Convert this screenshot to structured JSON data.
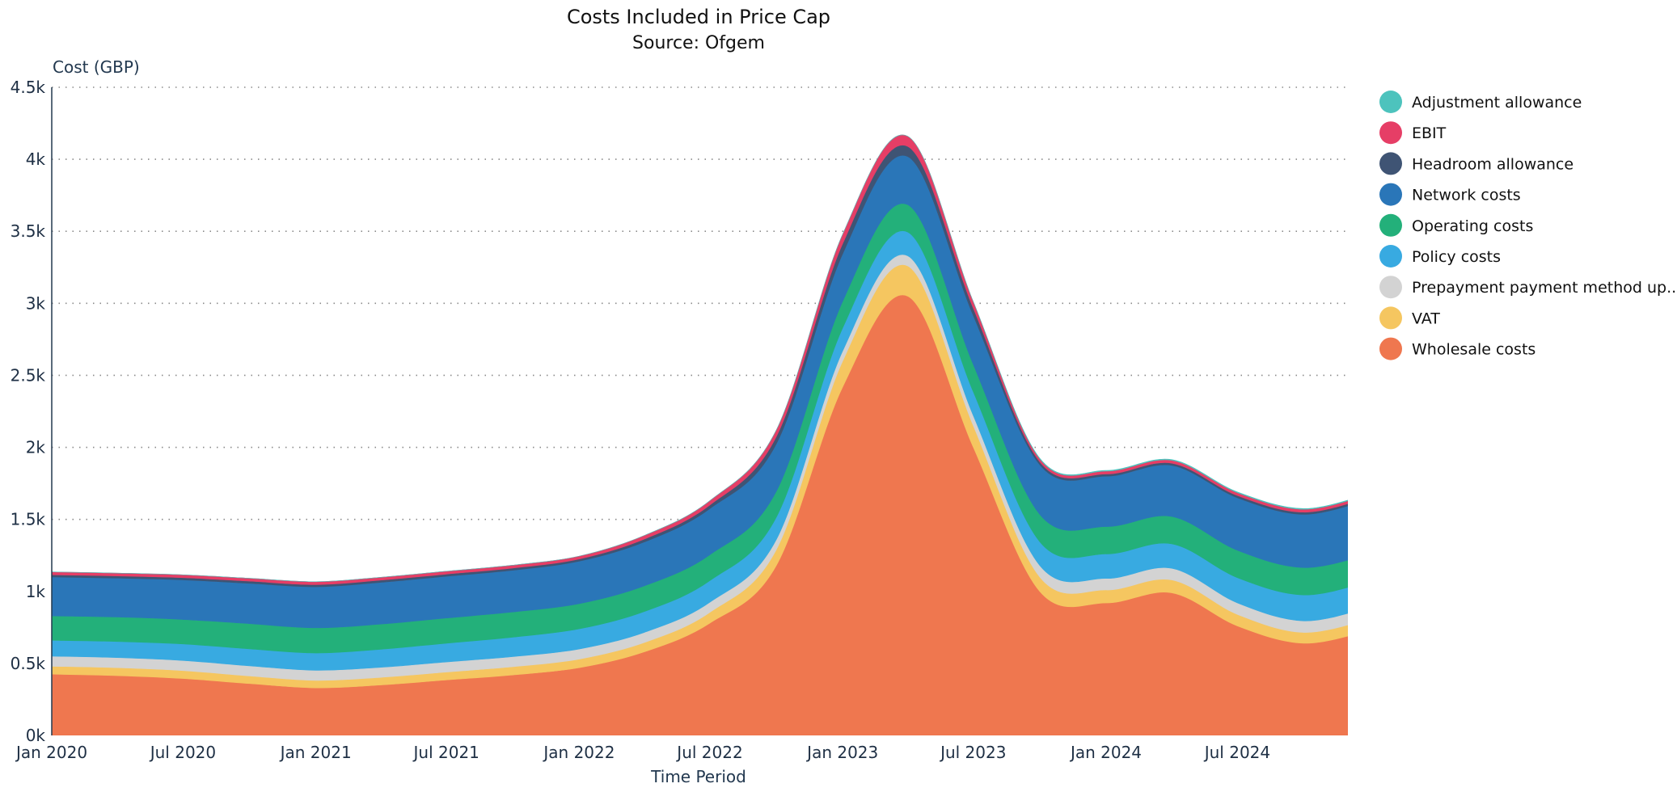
{
  "chart_data": {
    "type": "area",
    "stacked": true,
    "smooth": true,
    "title": "Costs Included in Price Cap",
    "subtitle": "Source: Ofgem",
    "xlabel": "Time Period",
    "ylabel": "Cost (GBP)",
    "x": [
      "2020-01-01",
      "2020-04-01",
      "2020-07-01",
      "2020-10-01",
      "2021-01-01",
      "2021-04-01",
      "2021-07-01",
      "2021-10-01",
      "2022-01-01",
      "2022-04-01",
      "2022-07-01",
      "2022-10-01",
      "2023-01-01",
      "2023-04-01",
      "2023-07-01",
      "2023-10-01",
      "2024-01-01",
      "2024-04-01",
      "2024-07-01",
      "2024-10-01",
      "2025-01-01"
    ],
    "xticks": [
      {
        "date": "2020-01-01",
        "label": "Jan 2020"
      },
      {
        "date": "2020-07-01",
        "label": "Jul 2020"
      },
      {
        "date": "2021-01-01",
        "label": "Jan 2021"
      },
      {
        "date": "2021-07-01",
        "label": "Jul 2021"
      },
      {
        "date": "2022-01-01",
        "label": "Jan 2022"
      },
      {
        "date": "2022-07-01",
        "label": "Jul 2022"
      },
      {
        "date": "2023-01-01",
        "label": "Jan 2023"
      },
      {
        "date": "2023-07-01",
        "label": "Jul 2023"
      },
      {
        "date": "2024-01-01",
        "label": "Jan 2024"
      },
      {
        "date": "2024-07-01",
        "label": "Jul 2024"
      }
    ],
    "yticks": [
      {
        "value": 0,
        "label": "0k"
      },
      {
        "value": 500,
        "label": "0.5k"
      },
      {
        "value": 1000,
        "label": "1k"
      },
      {
        "value": 1500,
        "label": "1.5k"
      },
      {
        "value": 2000,
        "label": "2k"
      },
      {
        "value": 2500,
        "label": "2.5k"
      },
      {
        "value": 3000,
        "label": "3k"
      },
      {
        "value": 3500,
        "label": "3.5k"
      },
      {
        "value": 4000,
        "label": "4k"
      },
      {
        "value": 4500,
        "label": "4.5k"
      }
    ],
    "ylim": [
      0,
      4500
    ],
    "xlim": [
      "2020-01-01",
      "2024-12-01"
    ],
    "grid": "horizontal dotted",
    "legend_position": "right",
    "series": [
      {
        "name": "Wholesale costs",
        "color": "#ef774f",
        "values": [
          425,
          415,
          395,
          360,
          330,
          350,
          385,
          420,
          470,
          580,
          780,
          1180,
          2420,
          3050,
          2000,
          1000,
          920,
          990,
          760,
          640,
          730
        ]
      },
      {
        "name": "VAT",
        "color": "#f5c660",
        "values": [
          55,
          55,
          55,
          53,
          52,
          53,
          55,
          57,
          60,
          65,
          75,
          110,
          180,
          210,
          150,
          100,
          90,
          90,
          80,
          75,
          80
        ]
      },
      {
        "name": "Prepayment payment method up...",
        "color": "#d3d3d3",
        "values": [
          70,
          70,
          70,
          70,
          70,
          70,
          70,
          70,
          70,
          70,
          70,
          70,
          70,
          70,
          70,
          80,
          80,
          80,
          80,
          80,
          80
        ]
      },
      {
        "name": "Policy costs",
        "color": "#38aae1",
        "values": [
          110,
          112,
          115,
          118,
          120,
          125,
          130,
          135,
          140,
          145,
          150,
          155,
          160,
          165,
          165,
          165,
          170,
          170,
          175,
          180,
          180
        ]
      },
      {
        "name": "Operating costs",
        "color": "#23b07a",
        "values": [
          170,
          170,
          170,
          175,
          175,
          175,
          175,
          175,
          175,
          178,
          180,
          180,
          185,
          190,
          190,
          190,
          190,
          190,
          190,
          190,
          190
        ]
      },
      {
        "name": "Network costs",
        "color": "#2a76b8",
        "values": [
          270,
          270,
          275,
          280,
          285,
          290,
          290,
          290,
          295,
          305,
          320,
          330,
          330,
          335,
          340,
          345,
          350,
          355,
          365,
          370,
          380
        ]
      },
      {
        "name": "Headroom allowance",
        "color": "#3f5474",
        "values": [
          15,
          15,
          15,
          15,
          15,
          15,
          15,
          15,
          15,
          20,
          25,
          50,
          70,
          70,
          50,
          20,
          15,
          15,
          15,
          15,
          15
        ]
      },
      {
        "name": "EBIT",
        "color": "#e63e66",
        "values": [
          20,
          20,
          20,
          20,
          20,
          20,
          20,
          20,
          20,
          25,
          30,
          45,
          65,
          70,
          45,
          20,
          20,
          20,
          20,
          20,
          20
        ]
      },
      {
        "name": "Adjustment allowance",
        "color": "#4dc3bd",
        "values": [
          0,
          0,
          0,
          0,
          0,
          0,
          0,
          0,
          0,
          0,
          0,
          0,
          0,
          0,
          0,
          5,
          5,
          5,
          5,
          5,
          5
        ]
      }
    ],
    "legend_order": [
      "Adjustment allowance",
      "EBIT",
      "Headroom allowance",
      "Network costs",
      "Operating costs",
      "Policy costs",
      "Prepayment payment method up...",
      "VAT",
      "Wholesale costs"
    ],
    "axis_color": "#22384f"
  }
}
